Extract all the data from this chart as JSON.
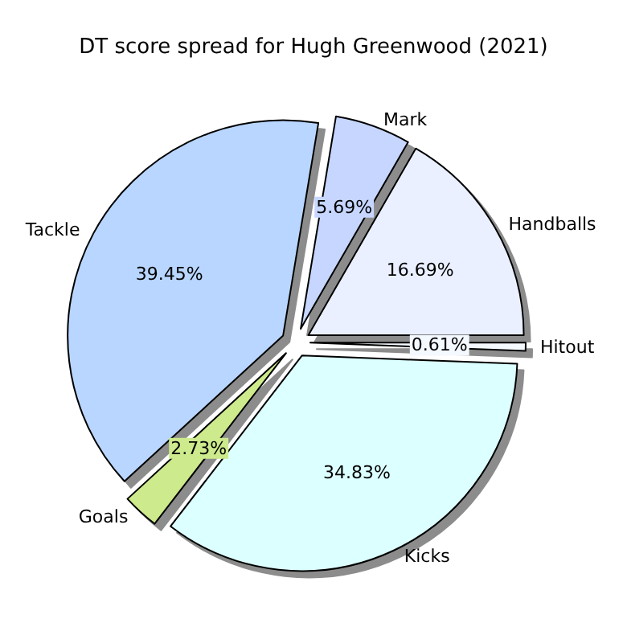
{
  "chart_data": {
    "type": "pie",
    "title": "DT score spread for Hugh Greenwood (2021)",
    "categories": [
      "Handballs",
      "Mark",
      "Tackle",
      "Goals",
      "Kicks",
      "Hitout"
    ],
    "values": [
      16.69,
      5.69,
      39.45,
      2.73,
      34.83,
      0.61
    ],
    "colors": [
      "#eaf0ff",
      "#c6d6ff",
      "#b8d6ff",
      "#cdea8c",
      "#dcffff",
      "#f4f8ff"
    ],
    "value_labels": [
      "16.69%",
      "5.69%",
      "39.45%",
      "2.73%",
      "34.83%",
      "0.61%"
    ],
    "legend": false
  }
}
